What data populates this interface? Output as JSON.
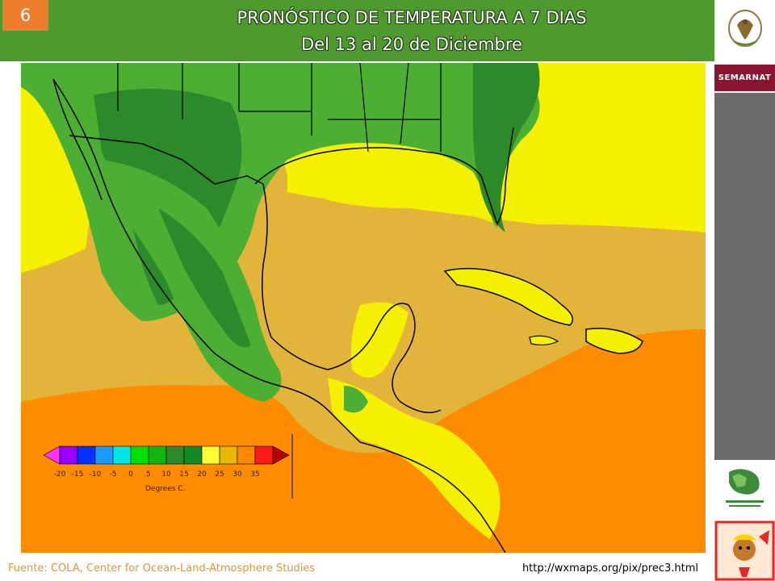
{
  "slide": {
    "number": "6"
  },
  "header": {
    "title": "PRONÓSTICO DE TEMPERATURA A 7 DIAS",
    "subtitle": "Del 13 al 20 de Diciembre"
  },
  "sidebar": {
    "brand": "SEMARNAT",
    "logos": [
      "mexico-seal-icon",
      "conafor-logo-icon",
      "mascot-icon"
    ]
  },
  "legend": {
    "ticks": [
      "-20",
      "-15",
      "-10",
      "-5",
      "0",
      "5",
      "10",
      "15",
      "20",
      "25",
      "30",
      "35"
    ],
    "unit_label": "Degrees C.",
    "colors": [
      "#ff33ff",
      "#9900ff",
      "#0033ff",
      "#1c9bff",
      "#00e5e5",
      "#00e000",
      "#11b410",
      "#118c24",
      "#2d8a2a",
      "#ffff33",
      "#e6b800",
      "#ff8800",
      "#ff1a1a",
      "#b30000"
    ]
  },
  "map_colors": {
    "green_dark": "#2d8a2a",
    "green": "#4caf33",
    "yellow": "#f5f000",
    "gold": "#e3b43a",
    "orange": "#ff8c00"
  },
  "footer": {
    "source": "Fuente: COLA, Center  for Ocean-Land-Atmosphere Studies",
    "url": "http://wxmaps.org/pix/prec3.html"
  }
}
